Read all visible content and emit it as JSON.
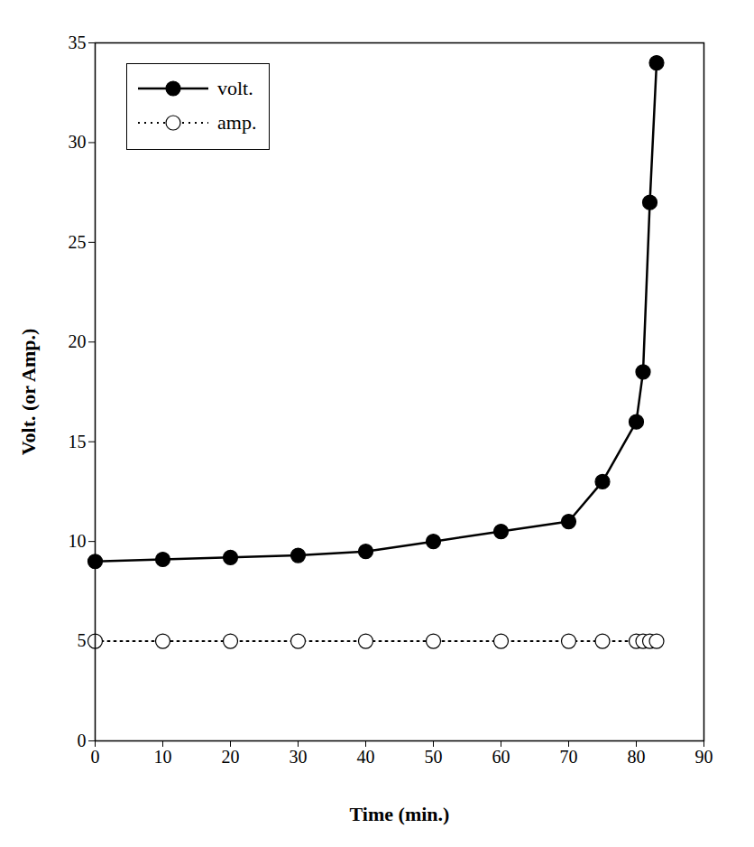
{
  "chart_data": {
    "type": "line",
    "x_label": "Time (min.)",
    "y_label": "Volt. (or Amp.)",
    "xlim": [
      0,
      90
    ],
    "xticks": [
      0,
      10,
      20,
      30,
      40,
      50,
      60,
      70,
      80,
      90
    ],
    "ylim": [
      0,
      35
    ],
    "yticks": [
      0,
      5,
      10,
      15,
      20,
      25,
      30,
      35
    ],
    "grid": false,
    "legend": "upper left",
    "x": [
      0,
      10,
      20,
      30,
      40,
      50,
      60,
      70,
      75,
      80,
      81,
      82,
      83
    ],
    "series": [
      {
        "name": "volt.",
        "color": "#000000",
        "marker": "circle",
        "line_style": "solid",
        "values": [
          9,
          9.1,
          9.2,
          9.3,
          9.5,
          10,
          10.5,
          11,
          13,
          16,
          18.5,
          27,
          34
        ]
      },
      {
        "name": "amp.",
        "color": "#000000",
        "marker": "open_circle",
        "line_style": "dotted",
        "values": [
          5,
          5,
          5,
          5,
          5,
          5,
          5,
          5,
          5,
          5,
          5,
          5,
          5
        ]
      }
    ]
  }
}
